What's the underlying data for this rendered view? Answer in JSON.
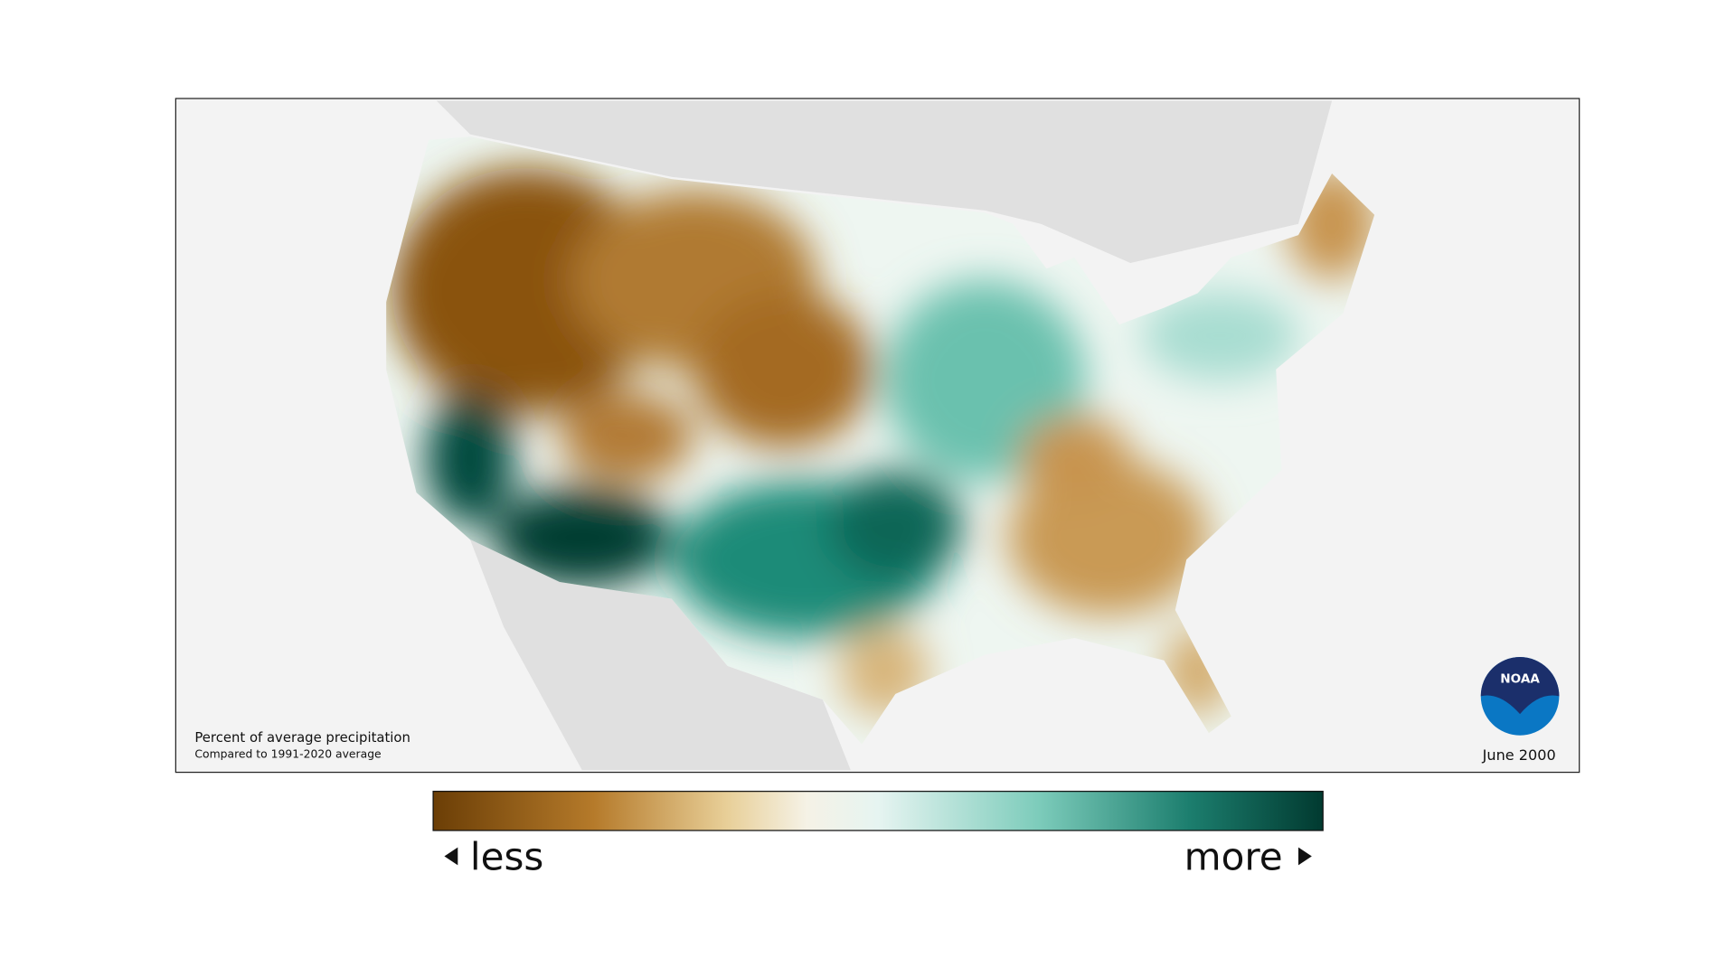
{
  "map": {
    "caption_title": "Percent of average precipitation",
    "caption_subtitle": "Compared to 1991-2020 average",
    "date": "June 2000",
    "logo": "NOAA"
  },
  "legend": {
    "low": "less",
    "high": "more"
  }
}
